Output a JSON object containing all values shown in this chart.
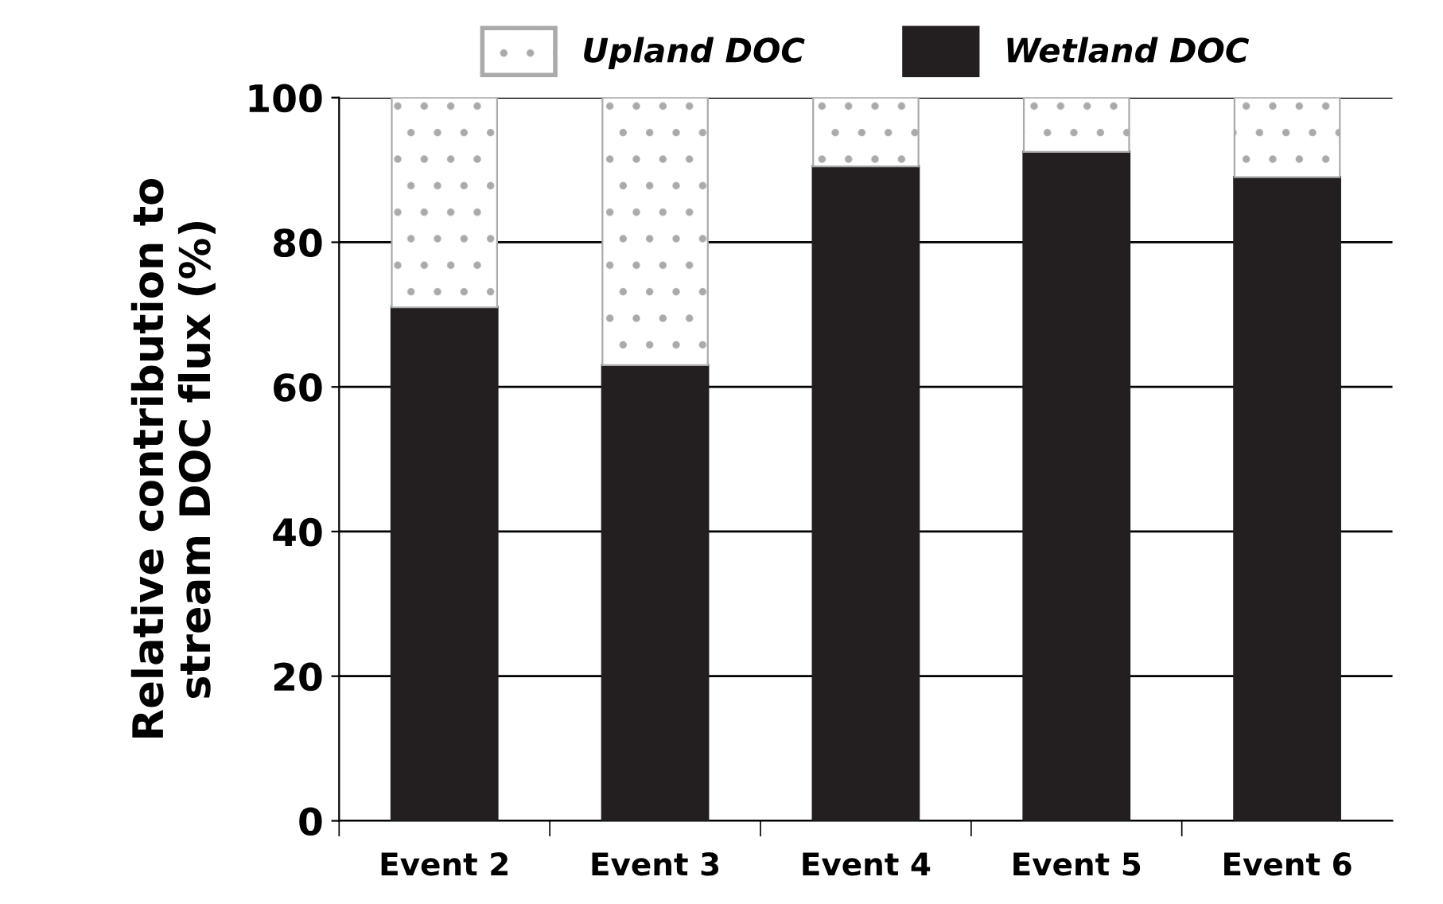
{
  "chart_data": {
    "type": "bar",
    "stacked": true,
    "ylabel": "Relative contribution to\nstream DOC flux (%)",
    "categories": [
      "Event 2",
      "Event 3",
      "Event 4",
      "Event 5",
      "Event 6"
    ],
    "series": [
      {
        "name": "Wetland DOC",
        "color": "#231f20",
        "values": [
          71,
          63,
          90.5,
          92.5,
          89
        ]
      },
      {
        "name": "Upland DOC",
        "color": "#aaaaaa",
        "values": [
          29,
          37,
          9.5,
          7.5,
          11
        ]
      }
    ],
    "ylim": [
      0,
      100
    ],
    "yticks": [
      0,
      20,
      40,
      60,
      80,
      100
    ],
    "grid": "y",
    "legend": "top"
  }
}
